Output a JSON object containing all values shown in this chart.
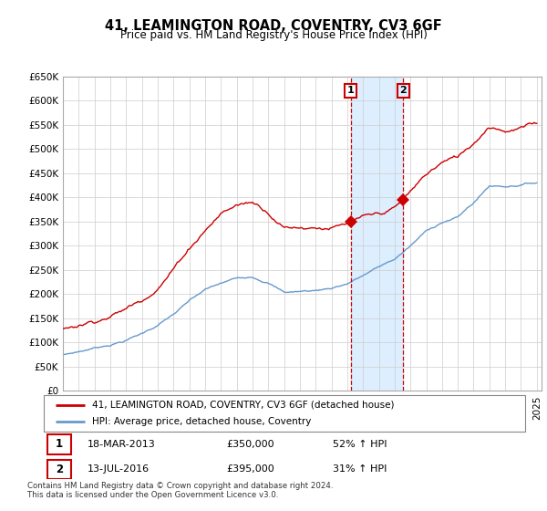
{
  "title": "41, LEAMINGTON ROAD, COVENTRY, CV3 6GF",
  "subtitle": "Price paid vs. HM Land Registry's House Price Index (HPI)",
  "legend_line1": "41, LEAMINGTON ROAD, COVENTRY, CV3 6GF (detached house)",
  "legend_line2": "HPI: Average price, detached house, Coventry",
  "transaction1_date": "18-MAR-2013",
  "transaction1_price": 350000,
  "transaction1_hpi": "52% ↑ HPI",
  "transaction1_year": 2013.21,
  "transaction2_date": "13-JUL-2016",
  "transaction2_price": 395000,
  "transaction2_hpi": "31% ↑ HPI",
  "transaction2_year": 2016.54,
  "footer": "Contains HM Land Registry data © Crown copyright and database right 2024.\nThis data is licensed under the Open Government Licence v3.0.",
  "hpi_color": "#6699cc",
  "price_color": "#cc0000",
  "shading_color": "#ddeeff",
  "vline_color": "#cc0000",
  "ylim_min": 0,
  "ylim_max": 650000,
  "background_color": "#ffffff",
  "hpi_anchor_years": [
    1995,
    1996,
    1997,
    1998,
    1999,
    2000,
    2001,
    2002,
    2003,
    2004,
    2005,
    2006,
    2007,
    2008,
    2009,
    2010,
    2011,
    2012,
    2013,
    2014,
    2015,
    2016,
    2017,
    2018,
    2019,
    2020,
    2021,
    2022,
    2023,
    2024,
    2025
  ],
  "hpi_anchor_vals": [
    75000,
    82000,
    90000,
    98000,
    108000,
    122000,
    140000,
    162000,
    188000,
    210000,
    222000,
    232000,
    238000,
    228000,
    208000,
    210000,
    212000,
    218000,
    228000,
    245000,
    262000,
    278000,
    305000,
    335000,
    355000,
    365000,
    395000,
    430000,
    430000,
    435000,
    440000
  ],
  "price_anchor_years": [
    1995,
    1996,
    1997,
    1998,
    1999,
    2000,
    2001,
    2002,
    2003,
    2004,
    2005,
    2006,
    2007,
    2008,
    2009,
    2010,
    2011,
    2012,
    2013,
    2014,
    2015,
    2016,
    2017,
    2018,
    2019,
    2020,
    2021,
    2022,
    2023,
    2024,
    2025
  ],
  "price_anchor_vals": [
    100000,
    110000,
    122000,
    135000,
    150000,
    170000,
    200000,
    240000,
    285000,
    325000,
    360000,
    378000,
    385000,
    368000,
    340000,
    342000,
    345000,
    347000,
    350000,
    365000,
    375000,
    395000,
    430000,
    465000,
    490000,
    500000,
    530000,
    570000,
    565000,
    572000,
    578000
  ]
}
